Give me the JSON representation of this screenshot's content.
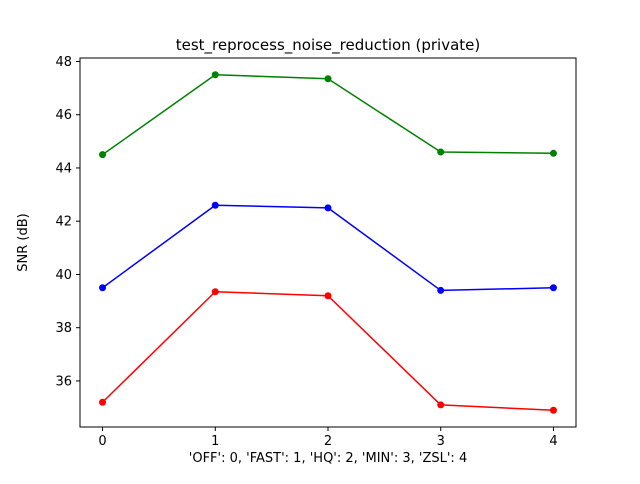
{
  "chart_data": {
    "type": "line",
    "title": "test_reprocess_noise_reduction (private)",
    "xlabel": "'OFF': 0, 'FAST': 1, 'HQ': 2, 'MIN': 3, 'ZSL': 4",
    "ylabel": "SNR (dB)",
    "x": [
      0,
      1,
      2,
      3,
      4
    ],
    "x_tick_labels": [
      "0",
      "1",
      "2",
      "3",
      "4"
    ],
    "y_ticks": [
      36,
      38,
      40,
      42,
      44,
      46,
      48
    ],
    "xlim": [
      -0.2,
      4.2
    ],
    "ylim": [
      34.27,
      48.13
    ],
    "grid": false,
    "legend": "none",
    "series": [
      {
        "name": "green-series",
        "color": "#008000",
        "values": [
          44.5,
          47.5,
          47.35,
          44.6,
          44.55
        ]
      },
      {
        "name": "blue-series",
        "color": "#0000ff",
        "values": [
          39.5,
          42.6,
          42.5,
          39.4,
          39.5
        ]
      },
      {
        "name": "red-series",
        "color": "#ff0000",
        "values": [
          35.2,
          39.35,
          39.2,
          35.1,
          34.9
        ]
      }
    ]
  }
}
